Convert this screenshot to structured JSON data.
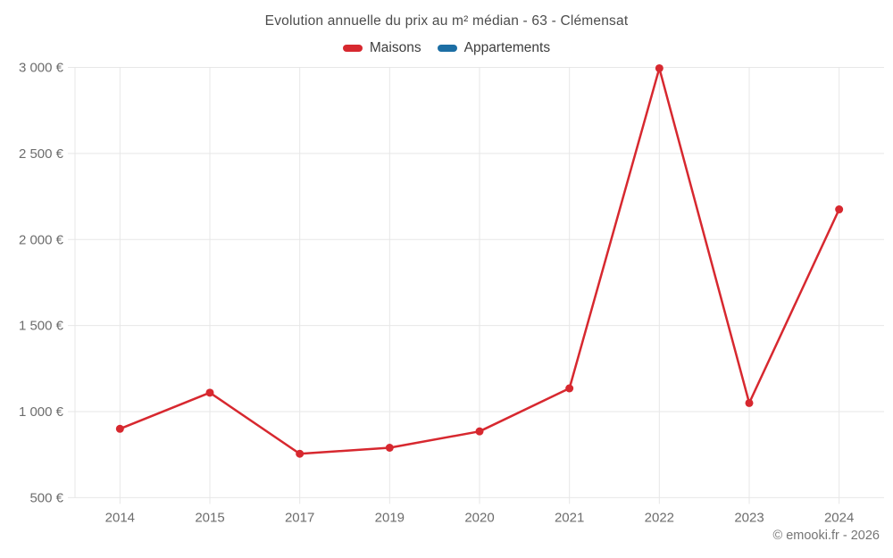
{
  "chart": {
    "title": "Evolution annuelle du prix au m² médian - 63 - Clémensat"
  },
  "chart_data": {
    "type": "line",
    "title": "Evolution annuelle du prix au m² médian - 63 - Clémensat",
    "categories": [
      "2014",
      "2015",
      "2017",
      "2019",
      "2020",
      "2021",
      "2022",
      "2023",
      "2024"
    ],
    "series": [
      {
        "name": "Maisons",
        "color": "#d7282f",
        "values": [
          900,
          1110,
          755,
          790,
          885,
          1135,
          2995,
          1050,
          2175
        ]
      },
      {
        "name": "Appartements",
        "color": "#1c6ea4",
        "values": []
      }
    ],
    "unit": "€",
    "yticks": [
      500,
      1000,
      1500,
      2000,
      2500,
      3000
    ],
    "ytick_labels": [
      "500 €",
      "1 000 €",
      "1 500 €",
      "2 000 €",
      "2 500 €",
      "3 000 €"
    ],
    "ylim": [
      500,
      3000
    ],
    "grid": true,
    "legend_position": "top",
    "colors": {
      "grid": "#e7e7e7",
      "axis_text": "#6d6d6d"
    }
  },
  "footer": {
    "copyright": "© emooki.fr - 2026"
  }
}
